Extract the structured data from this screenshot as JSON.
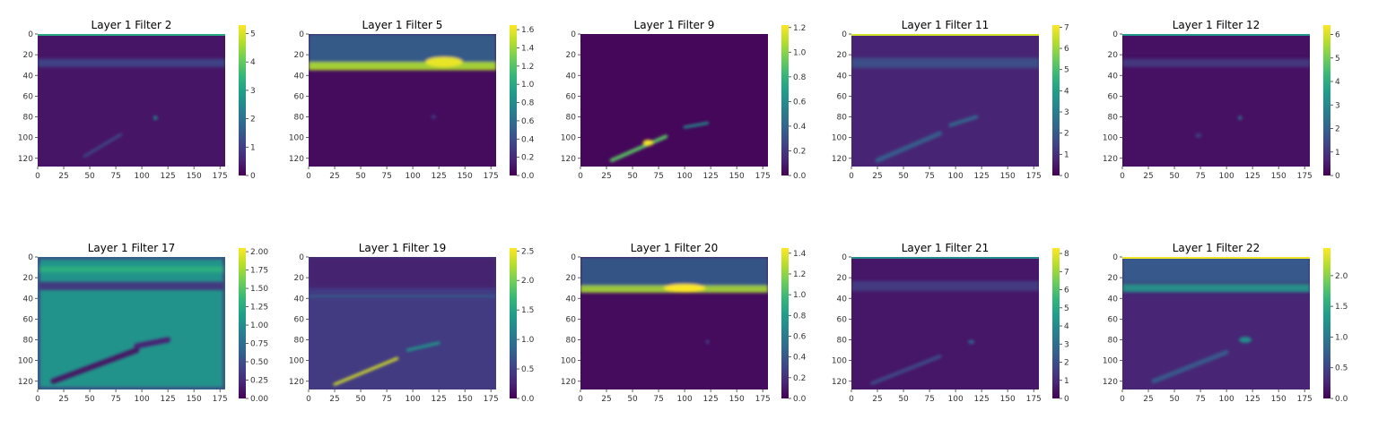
{
  "figure": {
    "colormap": "viridis",
    "colormap_stops": [
      "#440154",
      "#482878",
      "#3e4989",
      "#31688e",
      "#26828e",
      "#1f9e89",
      "#35b779",
      "#6ece58",
      "#b5de2b",
      "#fde725"
    ]
  },
  "chart_data": [
    {
      "type": "heatmap",
      "title": "Layer 1 Filter 2",
      "xlabel": "",
      "ylabel": "",
      "x_ticks": [
        0,
        25,
        50,
        75,
        100,
        125,
        150,
        175
      ],
      "y_ticks": [
        0,
        20,
        40,
        60,
        80,
        100,
        120
      ],
      "xlim": [
        0,
        180
      ],
      "ylim": [
        128,
        0
      ],
      "colorbar": {
        "min": 0,
        "max": 5.3,
        "ticks": [
          0,
          1,
          2,
          3,
          4,
          5
        ],
        "tick_labels": [
          "0",
          "1",
          "2",
          "3",
          "4",
          "5"
        ]
      },
      "background_value": 0.3,
      "features": [
        {
          "kind": "band",
          "y_center": 28,
          "thickness": 8,
          "value": 1.1
        },
        {
          "kind": "blob",
          "x": 113,
          "y": 81,
          "rx": 2,
          "ry": 2,
          "value": 2.5
        },
        {
          "kind": "streak",
          "x1": 45,
          "y1": 118,
          "x2": 80,
          "y2": 97,
          "width": 3,
          "value": 1.2
        },
        {
          "kind": "topline",
          "value": 3.2
        }
      ]
    },
    {
      "type": "heatmap",
      "title": "Layer 1 Filter 5",
      "xlabel": "",
      "ylabel": "",
      "x_ticks": [
        0,
        25,
        50,
        75,
        100,
        125,
        150,
        175
      ],
      "y_ticks": [
        0,
        20,
        40,
        60,
        80,
        100,
        120
      ],
      "xlim": [
        0,
        180
      ],
      "ylim": [
        128,
        0
      ],
      "colorbar": {
        "min": 0,
        "max": 1.65,
        "ticks": [
          0,
          0.2,
          0.4,
          0.6,
          0.8,
          1.0,
          1.2,
          1.4,
          1.6
        ],
        "tick_labels": [
          "0.0",
          "0.2",
          "0.4",
          "0.6",
          "0.8",
          "1.0",
          "1.2",
          "1.4",
          "1.6"
        ]
      },
      "background_value": 0.05,
      "features": [
        {
          "kind": "region",
          "y_from": 0,
          "y_to": 32,
          "value": 0.55
        },
        {
          "kind": "band",
          "y_center": 31,
          "thickness": 8,
          "value": 1.45
        },
        {
          "kind": "blob",
          "x": 130,
          "y": 27,
          "rx": 18,
          "ry": 5,
          "value": 1.6
        },
        {
          "kind": "blob",
          "x": 120,
          "y": 80,
          "rx": 2,
          "ry": 2,
          "value": 0.3
        }
      ]
    },
    {
      "type": "heatmap",
      "title": "Layer 1 Filter 9",
      "xlabel": "",
      "ylabel": "",
      "x_ticks": [
        0,
        25,
        50,
        75,
        100,
        125,
        150,
        175
      ],
      "y_ticks": [
        0,
        20,
        40,
        60,
        80,
        100,
        120
      ],
      "xlim": [
        0,
        180
      ],
      "ylim": [
        128,
        0
      ],
      "colorbar": {
        "min": 0,
        "max": 1.22,
        "ticks": [
          0,
          0.2,
          0.4,
          0.6,
          0.8,
          1.0,
          1.2
        ],
        "tick_labels": [
          "0.0",
          "0.2",
          "0.4",
          "0.6",
          "0.8",
          "1.0",
          "1.2"
        ]
      },
      "background_value": 0.02,
      "features": [
        {
          "kind": "streak",
          "x1": 30,
          "y1": 122,
          "x2": 82,
          "y2": 99,
          "width": 4,
          "value": 0.9
        },
        {
          "kind": "blob",
          "x": 65,
          "y": 105,
          "rx": 5,
          "ry": 3,
          "value": 1.2
        },
        {
          "kind": "streak",
          "x1": 100,
          "y1": 90,
          "x2": 122,
          "y2": 86,
          "width": 3,
          "value": 0.6
        }
      ]
    },
    {
      "type": "heatmap",
      "title": "Layer 1 Filter 11",
      "xlabel": "",
      "ylabel": "",
      "x_ticks": [
        0,
        25,
        50,
        75,
        100,
        125,
        150,
        175
      ],
      "y_ticks": [
        0,
        20,
        40,
        60,
        80,
        100,
        120
      ],
      "xlim": [
        0,
        180
      ],
      "ylim": [
        128,
        0
      ],
      "colorbar": {
        "min": 0,
        "max": 7.1,
        "ticks": [
          0,
          1,
          2,
          3,
          4,
          5,
          6,
          7
        ],
        "tick_labels": [
          "0",
          "1",
          "2",
          "3",
          "4",
          "5",
          "6",
          "7"
        ]
      },
      "background_value": 0.7,
      "features": [
        {
          "kind": "band",
          "y_center": 28,
          "thickness": 10,
          "value": 1.8
        },
        {
          "kind": "streak",
          "x1": 25,
          "y1": 122,
          "x2": 85,
          "y2": 96,
          "width": 5,
          "value": 2.2
        },
        {
          "kind": "streak",
          "x1": 95,
          "y1": 88,
          "x2": 120,
          "y2": 80,
          "width": 4,
          "value": 2.4
        },
        {
          "kind": "topline",
          "value": 6.6
        }
      ]
    },
    {
      "type": "heatmap",
      "title": "Layer 1 Filter 12",
      "xlabel": "",
      "ylabel": "",
      "x_ticks": [
        0,
        25,
        50,
        75,
        100,
        125,
        150,
        175
      ],
      "y_ticks": [
        0,
        20,
        40,
        60,
        80,
        100,
        120
      ],
      "xlim": [
        0,
        180
      ],
      "ylim": [
        128,
        0
      ],
      "colorbar": {
        "min": 0,
        "max": 6.4,
        "ticks": [
          0,
          1,
          2,
          3,
          4,
          5,
          6
        ],
        "tick_labels": [
          "0",
          "1",
          "2",
          "3",
          "4",
          "5",
          "6"
        ]
      },
      "background_value": 0.3,
      "features": [
        {
          "kind": "band",
          "y_center": 28,
          "thickness": 8,
          "value": 1.1
        },
        {
          "kind": "blob",
          "x": 113,
          "y": 81,
          "rx": 2,
          "ry": 2,
          "value": 2.2
        },
        {
          "kind": "blob",
          "x": 73,
          "y": 98,
          "rx": 3,
          "ry": 2,
          "value": 1.2
        },
        {
          "kind": "topline",
          "value": 3.4
        }
      ]
    },
    {
      "type": "heatmap",
      "title": "Layer 1 Filter 17",
      "xlabel": "",
      "ylabel": "",
      "x_ticks": [
        0,
        25,
        50,
        75,
        100,
        125,
        150,
        175
      ],
      "y_ticks": [
        0,
        20,
        40,
        60,
        80,
        100,
        120
      ],
      "xlim": [
        0,
        180
      ],
      "ylim": [
        128,
        0
      ],
      "colorbar": {
        "min": 0,
        "max": 2.05,
        "ticks": [
          0,
          0.25,
          0.5,
          0.75,
          1.0,
          1.25,
          1.5,
          1.75,
          2.0
        ],
        "tick_labels": [
          "0.00",
          "0.25",
          "0.50",
          "0.75",
          "1.00",
          "1.25",
          "1.50",
          "1.75",
          "2.00"
        ]
      },
      "background_value": 1.05,
      "features": [
        {
          "kind": "band",
          "y_center": 28,
          "thickness": 8,
          "value": 0.3
        },
        {
          "kind": "band",
          "y_center": 12,
          "thickness": 6,
          "value": 1.3
        },
        {
          "kind": "streak",
          "x1": 15,
          "y1": 120,
          "x2": 95,
          "y2": 90,
          "width": 6,
          "value": 0.1
        },
        {
          "kind": "streak",
          "x1": 95,
          "y1": 86,
          "x2": 125,
          "y2": 80,
          "width": 6,
          "value": 0.2
        },
        {
          "kind": "border",
          "value": 0.4
        }
      ]
    },
    {
      "type": "heatmap",
      "title": "Layer 1 Filter 19",
      "xlabel": "",
      "ylabel": "",
      "x_ticks": [
        0,
        25,
        50,
        75,
        100,
        125,
        150,
        175
      ],
      "y_ticks": [
        0,
        20,
        40,
        60,
        80,
        100,
        120
      ],
      "xlim": [
        0,
        180
      ],
      "ylim": [
        128,
        0
      ],
      "colorbar": {
        "min": 0,
        "max": 2.55,
        "ticks": [
          0,
          0.5,
          1.0,
          1.5,
          2.0,
          2.5
        ],
        "tick_labels": [
          "0.0",
          "0.5",
          "1.0",
          "1.5",
          "2.0",
          "2.5"
        ]
      },
      "background_value": 0.45,
      "features": [
        {
          "kind": "band",
          "y_center": 38,
          "thickness": 2,
          "value": 0.8
        },
        {
          "kind": "streak",
          "x1": 25,
          "y1": 123,
          "x2": 85,
          "y2": 98,
          "width": 3,
          "value": 2.4
        },
        {
          "kind": "streak",
          "x1": 95,
          "y1": 90,
          "x2": 125,
          "y2": 83,
          "width": 3,
          "value": 1.4
        },
        {
          "kind": "region",
          "y_from": 0,
          "y_to": 30,
          "value": 0.2
        }
      ]
    },
    {
      "type": "heatmap",
      "title": "Layer 1 Filter 20",
      "xlabel": "",
      "ylabel": "",
      "x_ticks": [
        0,
        25,
        50,
        75,
        100,
        125,
        150,
        175
      ],
      "y_ticks": [
        0,
        20,
        40,
        60,
        80,
        100,
        120
      ],
      "xlim": [
        0,
        180
      ],
      "ylim": [
        128,
        0
      ],
      "colorbar": {
        "min": 0,
        "max": 1.45,
        "ticks": [
          0,
          0.2,
          0.4,
          0.6,
          0.8,
          1.0,
          1.2,
          1.4
        ],
        "tick_labels": [
          "0.0",
          "0.2",
          "0.4",
          "0.6",
          "0.8",
          "1.0",
          "1.2",
          "1.4"
        ]
      },
      "background_value": 0.04,
      "features": [
        {
          "kind": "region",
          "y_from": 0,
          "y_to": 28,
          "value": 0.45
        },
        {
          "kind": "band",
          "y_center": 31,
          "thickness": 7,
          "value": 1.25
        },
        {
          "kind": "blob",
          "x": 100,
          "y": 30,
          "rx": 20,
          "ry": 4,
          "value": 1.45
        },
        {
          "kind": "blob",
          "x": 122,
          "y": 82,
          "rx": 2,
          "ry": 2,
          "value": 0.25
        }
      ]
    },
    {
      "type": "heatmap",
      "title": "Layer 1 Filter 21",
      "xlabel": "",
      "ylabel": "",
      "x_ticks": [
        0,
        25,
        50,
        75,
        100,
        125,
        150,
        175
      ],
      "y_ticks": [
        0,
        20,
        40,
        60,
        80,
        100,
        120
      ],
      "xlim": [
        0,
        180
      ],
      "ylim": [
        128,
        0
      ],
      "colorbar": {
        "min": 0,
        "max": 8.3,
        "ticks": [
          0,
          1,
          2,
          3,
          4,
          5,
          6,
          7,
          8
        ],
        "tick_labels": [
          "0",
          "1",
          "2",
          "3",
          "4",
          "5",
          "6",
          "7",
          "8"
        ]
      },
      "background_value": 0.5,
      "features": [
        {
          "kind": "band",
          "y_center": 28,
          "thickness": 10,
          "value": 1.5
        },
        {
          "kind": "streak",
          "x1": 20,
          "y1": 122,
          "x2": 85,
          "y2": 96,
          "width": 4,
          "value": 1.9
        },
        {
          "kind": "blob",
          "x": 115,
          "y": 82,
          "rx": 3,
          "ry": 2,
          "value": 2.6
        },
        {
          "kind": "topline",
          "value": 4.0
        }
      ]
    },
    {
      "type": "heatmap",
      "title": "Layer 1 Filter 22",
      "xlabel": "",
      "ylabel": "",
      "x_ticks": [
        0,
        25,
        50,
        75,
        100,
        125,
        150,
        175
      ],
      "y_ticks": [
        0,
        20,
        40,
        60,
        80,
        100,
        120
      ],
      "xlim": [
        0,
        180
      ],
      "ylim": [
        128,
        0
      ],
      "colorbar": {
        "min": 0,
        "max": 2.45,
        "ticks": [
          0,
          0.5,
          1.0,
          1.5,
          2.0
        ],
        "tick_labels": [
          "0.0",
          "0.5",
          "1.0",
          "1.5",
          "2.0"
        ]
      },
      "background_value": 0.25,
      "features": [
        {
          "kind": "region",
          "y_from": 0,
          "y_to": 25,
          "value": 0.75
        },
        {
          "kind": "band",
          "y_center": 30,
          "thickness": 8,
          "value": 1.3
        },
        {
          "kind": "streak",
          "x1": 30,
          "y1": 120,
          "x2": 100,
          "y2": 92,
          "width": 5,
          "value": 0.7
        },
        {
          "kind": "blob",
          "x": 118,
          "y": 80,
          "rx": 6,
          "ry": 3,
          "value": 1.2
        },
        {
          "kind": "topline",
          "value": 2.4
        }
      ]
    }
  ]
}
